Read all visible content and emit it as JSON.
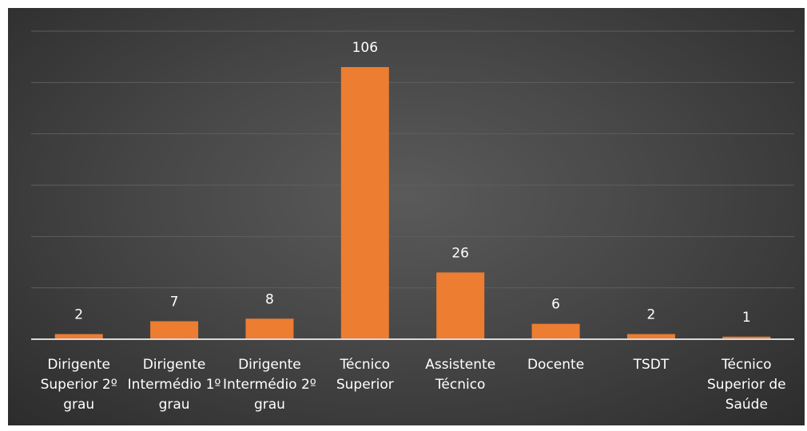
{
  "chart_data": {
    "type": "bar",
    "title": "",
    "xlabel": "",
    "ylabel": "",
    "categories": [
      "Dirigente Superior 2º grau",
      "Dirigente Intermédio 1º grau",
      "Dirigente Intermédio 2º grau",
      "Técnico Superior",
      "Assistente Técnico",
      "Docente",
      "TSDT",
      "Técnico Superior de Saúde"
    ],
    "values": [
      2,
      7,
      8,
      106,
      26,
      6,
      2,
      1
    ],
    "ylim": [
      0,
      120
    ],
    "grid": true,
    "bar_color": "#ED7D31",
    "background_color": "#474747",
    "axis_color": "#D9D9D9",
    "gridline_color": "#5E5E5E",
    "text_color": "#FFFFFF"
  }
}
